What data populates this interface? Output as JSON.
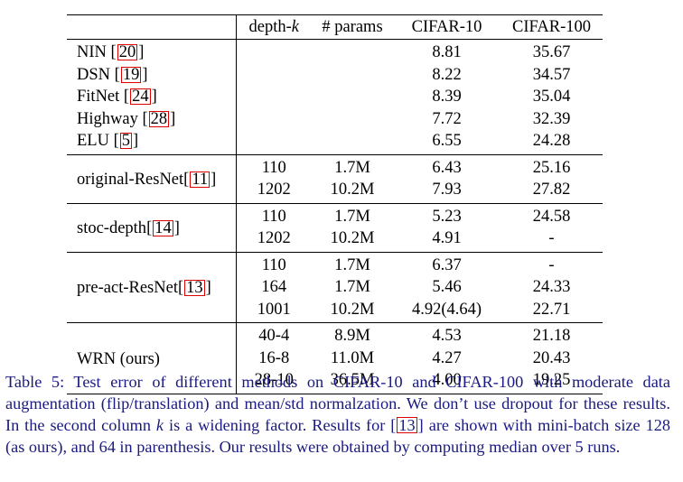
{
  "table": {
    "headers": [
      "",
      "depth-k",
      "# params",
      "CIFAR-10",
      "CIFAR-100"
    ],
    "groups": [
      {
        "rows": [
          {
            "method": "NIN",
            "cite": "20",
            "depth": "",
            "params": "",
            "c10": "8.81",
            "c100": "35.67"
          },
          {
            "method": "DSN",
            "cite": "19",
            "depth": "",
            "params": "",
            "c10": "8.22",
            "c100": "34.57"
          },
          {
            "method": "FitNet",
            "cite": "24",
            "depth": "",
            "params": "",
            "c10": "8.39",
            "c100": "35.04"
          },
          {
            "method": "Highway",
            "cite": "28",
            "depth": "",
            "params": "",
            "c10": "7.72",
            "c100": "32.39"
          },
          {
            "method": "ELU",
            "cite": "5",
            "depth": "",
            "params": "",
            "c10": "6.55",
            "c100": "24.28"
          }
        ]
      },
      {
        "method": "original-ResNet",
        "cite": "11",
        "rows": [
          {
            "depth": "110",
            "params": "1.7M",
            "c10": "6.43",
            "c100": "25.16"
          },
          {
            "depth": "1202",
            "params": "10.2M",
            "c10": "7.93",
            "c100": "27.82"
          }
        ]
      },
      {
        "method": "stoc-depth",
        "cite": "14",
        "rows": [
          {
            "depth": "110",
            "params": "1.7M",
            "c10": "5.23",
            "c100": "24.58"
          },
          {
            "depth": "1202",
            "params": "10.2M",
            "c10": "4.91",
            "c100": "-"
          }
        ]
      },
      {
        "method": "pre-act-ResNet",
        "cite": "13",
        "rows": [
          {
            "depth": "110",
            "params": "1.7M",
            "c10": "6.37",
            "c100": "-"
          },
          {
            "depth": "164",
            "params": "1.7M",
            "c10": "5.46",
            "c100": "24.33"
          },
          {
            "depth": "1001",
            "params": "10.2M",
            "c10": "4.92(4.64)",
            "c100": "22.71"
          }
        ]
      },
      {
        "method": "WRN (ours)",
        "rows": [
          {
            "depth": "40-4",
            "params": "8.9M",
            "c10": "4.53",
            "c100": "21.18"
          },
          {
            "depth": "16-8",
            "params": "11.0M",
            "c10": "4.27",
            "c100": "20.43"
          },
          {
            "depth": "28-10",
            "params": "36.5M",
            "c10": "4.00",
            "c100": "19.25"
          }
        ]
      }
    ]
  },
  "caption": {
    "part1": "Table 5: Test error of different methods on CIFAR-10 and CIFAR-100 with moderate data augmentation (flip/translation) and mean/std normalzation. We don’t use dropout for these results. In the second column ",
    "k": "k",
    "part2": " is a widening factor. Results for [",
    "cite": "13",
    "part3": "] are shown with mini-batch size 128 (as ours), and 64 in parenthesis. Our results were obtained by computing median over 5 runs."
  },
  "colors": {
    "caption_text": "#1a1a80",
    "citation_box": "#e00000"
  }
}
